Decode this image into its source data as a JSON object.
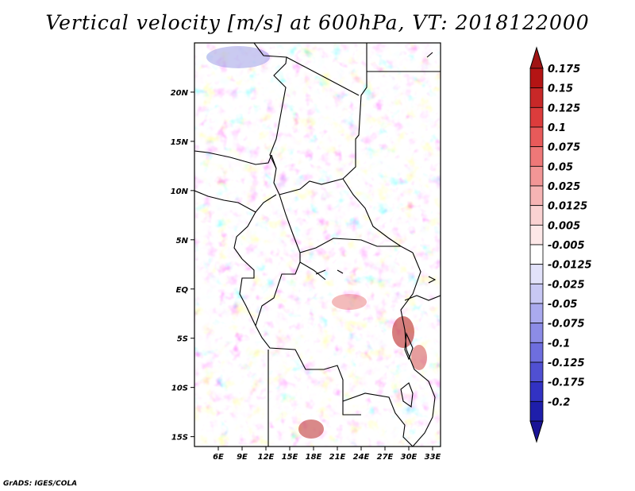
{
  "title": "Vertical velocity [m/s] at 600hPa, VT: 2018122000",
  "credit": "GrADS: IGES/COLA",
  "map": {
    "lon_range": [
      3,
      34
    ],
    "lat_range": [
      -16,
      25
    ],
    "lat_ticks": [
      {
        "value": 20,
        "label": "20N"
      },
      {
        "value": 15,
        "label": "15N"
      },
      {
        "value": 10,
        "label": "10N"
      },
      {
        "value": 5,
        "label": "5N"
      },
      {
        "value": 0,
        "label": "EQ"
      },
      {
        "value": -5,
        "label": "5S"
      },
      {
        "value": -10,
        "label": "10S"
      },
      {
        "value": -15,
        "label": "15S"
      }
    ],
    "lon_ticks": [
      {
        "value": 6,
        "label": "6E"
      },
      {
        "value": 9,
        "label": "9E"
      },
      {
        "value": 12,
        "label": "12E"
      },
      {
        "value": 15,
        "label": "15E"
      },
      {
        "value": 18,
        "label": "18E"
      },
      {
        "value": 21,
        "label": "21E"
      },
      {
        "value": 24,
        "label": "24E"
      },
      {
        "value": 27,
        "label": "27E"
      },
      {
        "value": 30,
        "label": "30E"
      },
      {
        "value": 33,
        "label": "33E"
      }
    ]
  },
  "colorbar": {
    "levels": [
      {
        "label": "0.175",
        "color": "#b41414"
      },
      {
        "label": "0.15",
        "color": "#c82828"
      },
      {
        "label": "0.125",
        "color": "#dc3c3c"
      },
      {
        "label": "0.1",
        "color": "#e85a5a"
      },
      {
        "label": "0.075",
        "color": "#ee7878"
      },
      {
        "label": "0.05",
        "color": "#f29696"
      },
      {
        "label": "0.025",
        "color": "#f6b4b4"
      },
      {
        "label": "0.0125",
        "color": "#fad2d2"
      },
      {
        "label": "0.005",
        "color": "#fde8e8"
      },
      {
        "label": "-0.005",
        "color": "#ffffff"
      },
      {
        "label": "-0.0125",
        "color": "#e2e2fa"
      },
      {
        "label": "-0.025",
        "color": "#c8c8f4"
      },
      {
        "label": "-0.05",
        "color": "#aaaaee"
      },
      {
        "label": "-0.075",
        "color": "#8c8ce6"
      },
      {
        "label": "-0.1",
        "color": "#6e6ede"
      },
      {
        "label": "-0.125",
        "color": "#5050d2"
      },
      {
        "label": "-0.175",
        "color": "#3232c3"
      },
      {
        "label": "-0.2",
        "color": "#1e1eaa"
      }
    ],
    "top_arrow_color": "#a01414",
    "bottom_arrow_color": "#1a1496"
  }
}
